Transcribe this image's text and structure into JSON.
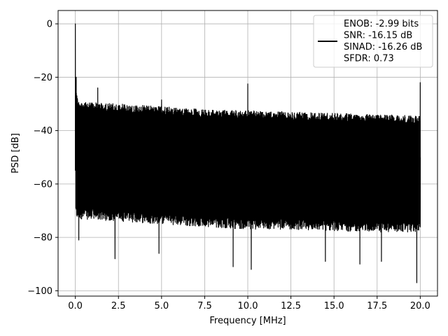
{
  "chart_data": {
    "type": "line",
    "title": "",
    "xlabel": "Frequency [MHz]",
    "ylabel": "PSD [dB]",
    "xlim": [
      -1.0,
      21.0
    ],
    "ylim": [
      -102,
      5
    ],
    "xticks": [
      0.0,
      2.5,
      5.0,
      7.5,
      10.0,
      12.5,
      15.0,
      17.5,
      20.0
    ],
    "xtick_labels": [
      "0.0",
      "2.5",
      "5.0",
      "7.5",
      "10.0",
      "12.5",
      "15.0",
      "17.5",
      "20.0"
    ],
    "yticks": [
      0,
      -20,
      -40,
      -60,
      -80,
      -100
    ],
    "ytick_labels": [
      "0",
      "−20",
      "−40",
      "−60",
      "−80",
      "−100"
    ],
    "grid": true,
    "legend_position": "top-right",
    "legend_entries": [
      "ENOB: -2.99 bits",
      "SNR: -16.15 dB",
      "SINAD: -16.26 dB",
      "SFDR: 0.73"
    ],
    "series": [
      {
        "color": "#000000",
        "noise_floor_upper_db": [
          [
            0.1,
            -29
          ],
          [
            2.5,
            -30
          ],
          [
            5.0,
            -31
          ],
          [
            7.5,
            -32
          ],
          [
            10.0,
            -32.5
          ],
          [
            12.5,
            -33
          ],
          [
            15.0,
            -33.5
          ],
          [
            17.5,
            -34
          ],
          [
            20.0,
            -34.5
          ]
        ],
        "noise_floor_lower_db": [
          [
            0.1,
            -72
          ],
          [
            2.5,
            -73
          ],
          [
            5.0,
            -74
          ],
          [
            7.5,
            -75
          ],
          [
            10.0,
            -76
          ],
          [
            12.5,
            -76
          ],
          [
            15.0,
            -76.5
          ],
          [
            17.5,
            -77
          ],
          [
            20.0,
            -77
          ]
        ],
        "peaks": [
          {
            "x": 0.0,
            "y": 0
          },
          {
            "x": 0.05,
            "y": -20
          },
          {
            "x": 1.3,
            "y": -24
          },
          {
            "x": 5.0,
            "y": -28.5
          },
          {
            "x": 10.0,
            "y": -22.5
          },
          {
            "x": 20.0,
            "y": -22
          }
        ],
        "dips": [
          {
            "x": 0.2,
            "y": -81
          },
          {
            "x": 2.3,
            "y": -88
          },
          {
            "x": 4.85,
            "y": -86
          },
          {
            "x": 9.15,
            "y": -91
          },
          {
            "x": 10.2,
            "y": -92
          },
          {
            "x": 14.5,
            "y": -89
          },
          {
            "x": 16.5,
            "y": -90
          },
          {
            "x": 17.75,
            "y": -89
          },
          {
            "x": 19.8,
            "y": -97
          }
        ]
      }
    ]
  }
}
